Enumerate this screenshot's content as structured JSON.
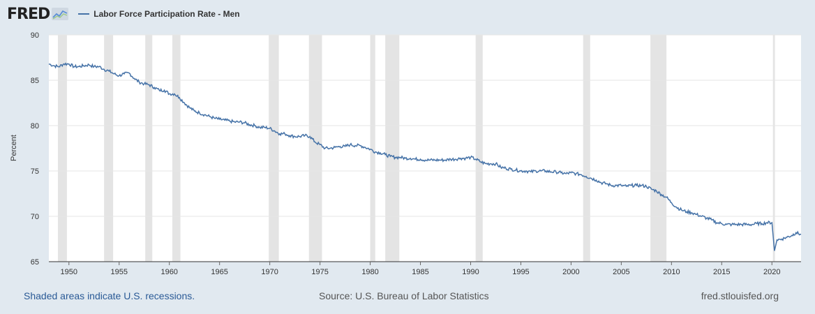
{
  "header": {
    "logo_text": "FRED",
    "legend_label": "Labor Force Participation Rate - Men"
  },
  "footer": {
    "recession_note": "Shaded areas indicate U.S. recessions.",
    "source": "Source: U.S. Bureau of Labor Statistics",
    "site": "fred.stlouisfed.org"
  },
  "colors": {
    "series": "#4572a7",
    "recession": "#e4e4e4",
    "background": "#e1e9f0",
    "plot": "#ffffff"
  },
  "chart_data": {
    "type": "line",
    "title": "",
    "xlabel": "",
    "ylabel": "Percent",
    "xlim": [
      1948.0,
      2022.9
    ],
    "ylim": [
      65,
      90
    ],
    "grid": true,
    "x_ticks": [
      "1950",
      "1955",
      "1960",
      "1965",
      "1970",
      "1975",
      "1980",
      "1985",
      "1990",
      "1995",
      "2000",
      "2005",
      "2010",
      "2015",
      "2020"
    ],
    "y_ticks": [
      "65",
      "70",
      "75",
      "80",
      "85",
      "90"
    ],
    "legend": "top-left",
    "recessions": [
      [
        1948.9,
        1949.8
      ],
      [
        1953.5,
        1954.4
      ],
      [
        1957.6,
        1958.3
      ],
      [
        1960.3,
        1961.1
      ],
      [
        1969.9,
        1970.9
      ],
      [
        1973.9,
        1975.2
      ],
      [
        1980.0,
        1980.5
      ],
      [
        1981.5,
        1982.9
      ],
      [
        1990.5,
        1991.2
      ],
      [
        2001.2,
        2001.9
      ],
      [
        2007.9,
        2009.5
      ],
      [
        2020.1,
        2020.3
      ]
    ],
    "series": [
      {
        "name": "Labor Force Participation Rate - Men",
        "x": [
          1948.0,
          1948.5,
          1949.0,
          1949.5,
          1950.0,
          1950.5,
          1951.0,
          1951.5,
          1952.0,
          1952.5,
          1953.0,
          1953.5,
          1954.0,
          1954.5,
          1955.0,
          1955.5,
          1956.0,
          1956.5,
          1957.0,
          1957.5,
          1958.0,
          1958.5,
          1959.0,
          1959.5,
          1960.0,
          1960.5,
          1961.0,
          1961.5,
          1962.0,
          1962.5,
          1963.0,
          1963.5,
          1964.0,
          1964.5,
          1965.0,
          1965.5,
          1966.0,
          1966.5,
          1967.0,
          1967.5,
          1968.0,
          1968.5,
          1969.0,
          1969.5,
          1970.0,
          1970.5,
          1971.0,
          1971.5,
          1972.0,
          1972.5,
          1973.0,
          1973.5,
          1974.0,
          1974.5,
          1975.0,
          1975.5,
          1976.0,
          1976.5,
          1977.0,
          1977.5,
          1978.0,
          1978.5,
          1979.0,
          1979.5,
          1980.0,
          1980.5,
          1981.0,
          1981.5,
          1982.0,
          1982.5,
          1983.0,
          1983.5,
          1984.0,
          1984.5,
          1985.0,
          1985.5,
          1986.0,
          1986.5,
          1987.0,
          1987.5,
          1988.0,
          1988.5,
          1989.0,
          1989.5,
          1990.0,
          1990.5,
          1991.0,
          1991.5,
          1992.0,
          1992.5,
          1993.0,
          1993.5,
          1994.0,
          1994.5,
          1995.0,
          1995.5,
          1996.0,
          1996.5,
          1997.0,
          1997.5,
          1998.0,
          1998.5,
          1999.0,
          1999.5,
          2000.0,
          2000.5,
          2001.0,
          2001.5,
          2002.0,
          2002.5,
          2003.0,
          2003.5,
          2004.0,
          2004.5,
          2005.0,
          2005.5,
          2006.0,
          2006.5,
          2007.0,
          2007.5,
          2008.0,
          2008.5,
          2009.0,
          2009.5,
          2010.0,
          2010.5,
          2011.0,
          2011.5,
          2012.0,
          2012.5,
          2013.0,
          2013.5,
          2014.0,
          2014.5,
          2015.0,
          2015.5,
          2016.0,
          2016.5,
          2017.0,
          2017.5,
          2018.0,
          2018.5,
          2019.0,
          2019.5,
          2020.0,
          2020.25,
          2020.5,
          2021.0,
          2021.5,
          2022.0,
          2022.4,
          2022.9
        ],
        "values": [
          86.8,
          86.6,
          86.5,
          86.8,
          86.8,
          86.5,
          86.5,
          86.6,
          86.7,
          86.5,
          86.5,
          86.2,
          86.0,
          85.7,
          85.5,
          85.7,
          85.8,
          85.2,
          84.8,
          84.6,
          84.5,
          84.2,
          83.9,
          83.9,
          83.5,
          83.5,
          83.1,
          82.5,
          82.0,
          81.6,
          81.4,
          81.2,
          81.0,
          80.8,
          80.7,
          80.6,
          80.5,
          80.4,
          80.4,
          80.3,
          80.1,
          80.0,
          79.8,
          79.8,
          79.7,
          79.4,
          79.1,
          79.1,
          78.9,
          78.8,
          78.8,
          78.9,
          78.8,
          78.2,
          77.9,
          77.5,
          77.5,
          77.6,
          77.7,
          77.7,
          77.9,
          77.8,
          77.8,
          77.6,
          77.4,
          77.1,
          77.0,
          76.8,
          76.6,
          76.5,
          76.5,
          76.4,
          76.4,
          76.3,
          76.3,
          76.2,
          76.2,
          76.2,
          76.2,
          76.2,
          76.3,
          76.3,
          76.4,
          76.4,
          76.5,
          76.3,
          76.0,
          75.8,
          75.8,
          75.8,
          75.4,
          75.3,
          75.2,
          75.1,
          75.0,
          75.0,
          74.9,
          75.0,
          75.0,
          75.0,
          74.9,
          74.9,
          74.8,
          74.7,
          74.8,
          74.7,
          74.6,
          74.4,
          74.2,
          74.0,
          73.7,
          73.6,
          73.4,
          73.4,
          73.4,
          73.3,
          73.4,
          73.4,
          73.4,
          73.3,
          73.0,
          72.8,
          72.4,
          72.1,
          71.5,
          71.0,
          70.7,
          70.5,
          70.4,
          70.2,
          70.0,
          69.8,
          69.6,
          69.3,
          69.2,
          69.1,
          69.1,
          69.1,
          69.1,
          69.1,
          69.1,
          69.2,
          69.2,
          69.3,
          69.3,
          66.2,
          67.4,
          67.5,
          67.7,
          67.9,
          68.2,
          68.0
        ]
      }
    ]
  }
}
